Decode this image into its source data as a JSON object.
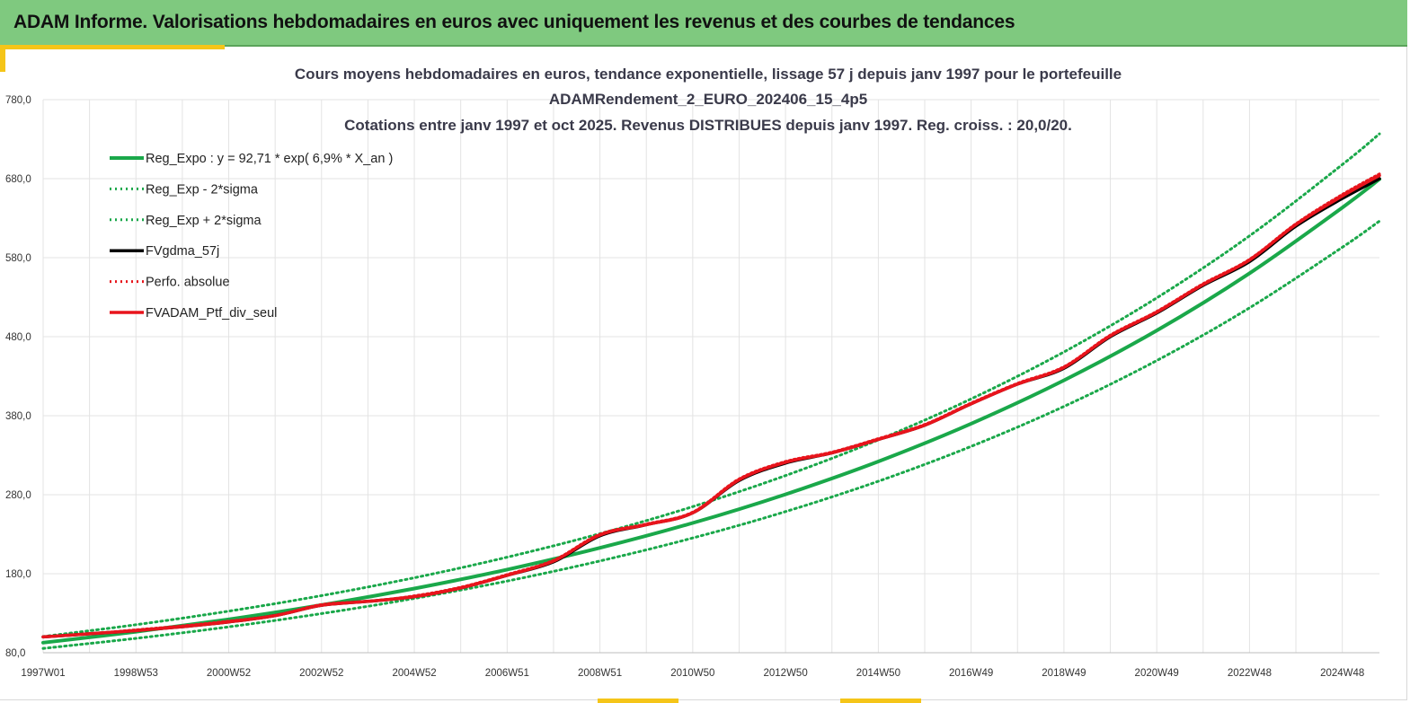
{
  "header": {
    "title": "ADAM Informe. Valorisations hebdomadaires en euros avec uniquement les revenus et des courbes de tendances"
  },
  "colors": {
    "header_bg": "#7fc97f",
    "accent": "#f5c518",
    "reg_green": "#1aa84a",
    "fv_black": "#000000",
    "fv_red": "#e8141c",
    "grid": "#e3e3e3"
  },
  "chart_data": {
    "type": "line",
    "title_lines": [
      "Cours moyens hebdomadaires  en euros, tendance exponentielle, lissage 57 j depuis janv 1997 pour le portefeuille",
      "ADAMRendement_2_EURO_202406_15_4p5",
      "Cotations entre janv 1997 et oct 2025. Revenus DISTRIBUES depuis janv 1997. Reg. croiss. : 20,0/20."
    ],
    "xlabel": "",
    "ylabel": "",
    "ylim": [
      80,
      780
    ],
    "yticks": [
      "780,0",
      "680,0",
      "580,0",
      "480,0",
      "380,0",
      "280,0",
      "180,0",
      "80,0"
    ],
    "ytick_values": [
      780,
      680,
      580,
      480,
      380,
      280,
      180,
      80
    ],
    "xlim": [
      1997.0,
      2025.8
    ],
    "xticks": [
      "1997W01",
      "1998W53",
      "2000W52",
      "2002W52",
      "2004W52",
      "2006W51",
      "2008W51",
      "2010W50",
      "2012W50",
      "2014W50",
      "2016W49",
      "2018W49",
      "2020W49",
      "2022W48",
      "2024W48"
    ],
    "xtick_values": [
      1997.0,
      1999.0,
      2001.0,
      2003.0,
      2005.0,
      2007.0,
      2009.0,
      2011.0,
      2013.0,
      2015.0,
      2017.0,
      2019.0,
      2021.0,
      2023.0,
      2025.0
    ],
    "legend": [
      {
        "name": "Reg_Expo : y = 92,71 * exp( 6,9% *  X_an )",
        "color": "#1aa84a",
        "style": "solid"
      },
      {
        "name": "Reg_Exp - 2*sigma",
        "color": "#1aa84a",
        "style": "dotted"
      },
      {
        "name": "Reg_Exp + 2*sigma",
        "color": "#1aa84a",
        "style": "dotted"
      },
      {
        "name": "FVgdma_57j",
        "color": "#000000",
        "style": "solid"
      },
      {
        "name": "Perfo. absolue",
        "color": "#e8141c",
        "style": "dotted"
      },
      {
        "name": "FVADAM_Ptf_div_seul",
        "color": "#e8141c",
        "style": "solid"
      }
    ],
    "series": [
      {
        "name": "Reg_Expo : y = 92,71 * exp( 6,9% *  X_an )",
        "x": [
          1997.0,
          1999.0,
          2001.0,
          2003.0,
          2005.0,
          2007.0,
          2009.0,
          2011.0,
          2013.0,
          2015.0,
          2017.0,
          2019.0,
          2021.0,
          2023.0,
          2025.0,
          2025.8
        ],
        "values": [
          92.7,
          106.5,
          122.3,
          140.4,
          161.3,
          185.2,
          212.7,
          244.2,
          280.5,
          322.1,
          369.9,
          424.8,
          487.8,
          560.2,
          643.4,
          679.3
        ]
      },
      {
        "name": "Reg_Exp - 2*sigma",
        "x": [
          1997.0,
          1999.0,
          2001.0,
          2003.0,
          2005.0,
          2007.0,
          2009.0,
          2011.0,
          2013.0,
          2015.0,
          2017.0,
          2019.0,
          2021.0,
          2023.0,
          2025.0,
          2025.8
        ],
        "values": [
          85.5,
          98.2,
          112.7,
          129.5,
          148.7,
          170.7,
          196.1,
          225.2,
          258.6,
          297.0,
          341.1,
          391.7,
          449.8,
          516.5,
          593.2,
          626.3
        ]
      },
      {
        "name": "Reg_Exp + 2*sigma",
        "x": [
          1997.0,
          1999.0,
          2001.0,
          2003.0,
          2005.0,
          2007.0,
          2009.0,
          2011.0,
          2013.0,
          2015.0,
          2017.0,
          2019.0,
          2021.0,
          2023.0,
          2025.0,
          2025.8
        ],
        "values": [
          100.5,
          115.5,
          132.6,
          152.3,
          174.9,
          200.9,
          230.7,
          264.9,
          304.2,
          349.4,
          401.2,
          460.7,
          529.1,
          607.6,
          697.8,
          736.7
        ]
      },
      {
        "name": "FVgdma_57j",
        "x": [
          1997.0,
          1998.0,
          1999.0,
          2000.0,
          2001.0,
          2002.0,
          2003.0,
          2004.0,
          2005.0,
          2006.0,
          2007.0,
          2008.0,
          2009.0,
          2010.0,
          2011.0,
          2012.0,
          2013.0,
          2014.0,
          2015.0,
          2016.0,
          2017.0,
          2018.0,
          2019.0,
          2020.0,
          2021.0,
          2022.0,
          2023.0,
          2024.0,
          2025.0,
          2025.8
        ],
        "values": [
          100,
          104,
          108,
          113,
          119,
          127,
          140,
          145,
          151,
          162,
          178,
          195,
          228,
          242,
          257,
          298,
          320,
          333,
          350,
          368,
          395,
          420,
          440,
          480,
          510,
          545,
          575,
          620,
          655,
          680
        ]
      },
      {
        "name": "Perfo. absolue",
        "x": [
          1997.0,
          1998.0,
          1999.0,
          2000.0,
          2001.0,
          2002.0,
          2003.0,
          2004.0,
          2005.0,
          2006.0,
          2007.0,
          2008.0,
          2009.0,
          2010.0,
          2011.0,
          2012.0,
          2013.0,
          2014.0,
          2015.0,
          2016.0,
          2017.0,
          2018.0,
          2019.0,
          2020.0,
          2021.0,
          2022.0,
          2023.0,
          2024.0,
          2025.0,
          2025.8
        ],
        "values": [
          100,
          104,
          109,
          114,
          120,
          127,
          141,
          145,
          152,
          163,
          179,
          197,
          230,
          243,
          258,
          300,
          322,
          334,
          351,
          369,
          396,
          421,
          442,
          482,
          512,
          547,
          578,
          623,
          660,
          686
        ]
      },
      {
        "name": "FVADAM_Ptf_div_seul",
        "x": [
          1997.0,
          1998.0,
          1999.0,
          2000.0,
          2001.0,
          2002.0,
          2003.0,
          2004.0,
          2005.0,
          2006.0,
          2007.0,
          2008.0,
          2009.0,
          2010.0,
          2011.0,
          2012.0,
          2013.0,
          2014.0,
          2015.0,
          2016.0,
          2017.0,
          2018.0,
          2019.0,
          2020.0,
          2021.0,
          2022.0,
          2023.0,
          2024.0,
          2025.0,
          2025.8
        ],
        "values": [
          100,
          104,
          108,
          113,
          119,
          127,
          140,
          145,
          151,
          162,
          178,
          196,
          229,
          242,
          257,
          299,
          321,
          333,
          350,
          368,
          395,
          420,
          441,
          481,
          511,
          546,
          577,
          622,
          658,
          684
        ]
      }
    ]
  }
}
